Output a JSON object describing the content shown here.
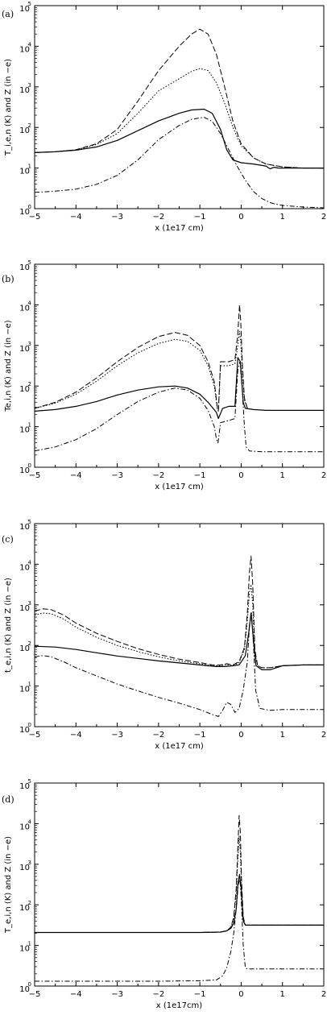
{
  "chart_data": [
    {
      "type": "line",
      "panel_label": "(a)",
      "xlabel": "x (1e17 cm)",
      "ylabel": "T_i,e,n (K) and Z (in −e)",
      "xlim": [
        -5,
        2
      ],
      "ylim": [
        0,
        5
      ],
      "y_scale": "log",
      "x_ticks": [
        "−5",
        "−4",
        "−3",
        "−2",
        "−1",
        "0",
        "1",
        "2"
      ],
      "y_ticks": [
        {
          "base": "10",
          "exp": "0"
        },
        {
          "base": "10",
          "exp": "1"
        },
        {
          "base": "10",
          "exp": "2"
        },
        {
          "base": "10",
          "exp": "3"
        },
        {
          "base": "10",
          "exp": "4"
        },
        {
          "base": "10",
          "exp": "5"
        }
      ],
      "series": [
        {
          "style": "solid",
          "x": [
            -5,
            -4.5,
            -4,
            -3.5,
            -3,
            -2.5,
            -2,
            -1.5,
            -1.2,
            -0.9,
            -0.7,
            -0.5,
            -0.35,
            -0.2,
            0,
            0.3,
            0.6,
            0.7,
            0.8,
            0.9,
            1,
            1.5,
            2
          ],
          "y": [
            1.38,
            1.4,
            1.44,
            1.52,
            1.68,
            1.92,
            2.16,
            2.35,
            2.43,
            2.45,
            2.35,
            1.95,
            1.45,
            1.2,
            1.13,
            1.1,
            1.05,
            0.98,
            1.02,
            1.0,
            1.0,
            1.0,
            1.0
          ]
        },
        {
          "style": "dashed",
          "x": [
            -5,
            -4.5,
            -4,
            -3.5,
            -3,
            -2.5,
            -2,
            -1.5,
            -1.2,
            -1.0,
            -0.8,
            -0.6,
            -0.4,
            -0.2,
            0,
            0.3,
            0.6,
            1,
            1.5,
            2
          ],
          "y": [
            1.38,
            1.4,
            1.45,
            1.6,
            1.95,
            2.65,
            3.4,
            4.0,
            4.3,
            4.42,
            4.3,
            3.8,
            3.0,
            2.15,
            1.6,
            1.25,
            1.1,
            1.03,
            1.0,
            1.0
          ]
        },
        {
          "style": "dotted",
          "x": [
            -5,
            -4.5,
            -4,
            -3.5,
            -3,
            -2.5,
            -2,
            -1.5,
            -1.2,
            -1.0,
            -0.8,
            -0.6,
            -0.4,
            -0.2,
            0,
            0.3,
            0.6,
            1,
            1.5,
            2
          ],
          "y": [
            1.38,
            1.4,
            1.45,
            1.58,
            1.85,
            2.35,
            2.9,
            3.2,
            3.38,
            3.45,
            3.4,
            3.1,
            2.6,
            2.0,
            1.55,
            1.25,
            1.1,
            1.03,
            1.0,
            1.0
          ]
        },
        {
          "style": "dashdot",
          "x": [
            -5,
            -4.5,
            -4,
            -3.5,
            -3,
            -2.5,
            -2,
            -1.5,
            -1.2,
            -0.9,
            -0.7,
            -0.5,
            -0.3,
            -0.1,
            0.1,
            0.3,
            0.5,
            0.7,
            0.8,
            1.0,
            1.5,
            2
          ],
          "y": [
            0.4,
            0.43,
            0.48,
            0.6,
            0.82,
            1.2,
            1.7,
            2.05,
            2.2,
            2.25,
            2.15,
            1.85,
            1.45,
            1.05,
            0.7,
            0.42,
            0.25,
            0.15,
            0.12,
            0.08,
            0.04,
            0.02
          ]
        }
      ]
    },
    {
      "type": "line",
      "panel_label": "(b)",
      "xlabel": "x (1e17 cm)",
      "ylabel": "Te,i,n (K) and Z (in −e)",
      "xlim": [
        -5,
        2
      ],
      "ylim": [
        0,
        5
      ],
      "y_scale": "log",
      "x_ticks": [
        "−5",
        "−4",
        "−3",
        "−2",
        "−1",
        "0",
        "1",
        "2"
      ],
      "y_ticks": [
        {
          "base": "10",
          "exp": "0"
        },
        {
          "base": "10",
          "exp": "1"
        },
        {
          "base": "10",
          "exp": "2"
        },
        {
          "base": "10",
          "exp": "3"
        },
        {
          "base": "10",
          "exp": "4"
        },
        {
          "base": "10",
          "exp": "5"
        }
      ],
      "series": [
        {
          "style": "solid",
          "x": [
            -5,
            -4.5,
            -4,
            -3.5,
            -3,
            -2.5,
            -2,
            -1.6,
            -1.3,
            -1.0,
            -0.8,
            -0.6,
            -0.55,
            -0.45,
            -0.3,
            -0.15,
            -0.08,
            -0.02,
            0.05,
            0.1,
            0.3,
            0.6,
            1,
            1.5,
            2
          ],
          "y": [
            1.38,
            1.42,
            1.5,
            1.62,
            1.78,
            1.9,
            1.98,
            2.0,
            1.95,
            1.8,
            1.6,
            1.35,
            1.2,
            1.45,
            1.5,
            1.5,
            2.7,
            2.6,
            1.6,
            1.45,
            1.42,
            1.4,
            1.4,
            1.4,
            1.4
          ]
        },
        {
          "style": "dashed",
          "x": [
            -5,
            -4.5,
            -4,
            -3.5,
            -3,
            -2.5,
            -2,
            -1.6,
            -1.3,
            -1.0,
            -0.8,
            -0.65,
            -0.58,
            -0.55,
            -0.5,
            -0.3,
            -0.15,
            -0.08,
            -0.04,
            -0.01,
            0.03,
            0.08,
            0.15
          ],
          "y": [
            1.45,
            1.6,
            1.85,
            2.2,
            2.6,
            2.95,
            3.22,
            3.32,
            3.25,
            3.0,
            2.6,
            2.1,
            1.5,
            1.4,
            2.6,
            2.6,
            2.65,
            3.3,
            4.0,
            3.6,
            2.5,
            1.7,
            1.45
          ]
        },
        {
          "style": "dotted",
          "x": [
            -5,
            -4.5,
            -4,
            -3.5,
            -3,
            -2.5,
            -2,
            -1.6,
            -1.3,
            -1.0,
            -0.8,
            -0.65,
            -0.58,
            -0.55,
            -0.5,
            -0.3,
            -0.15,
            -0.08,
            -0.04,
            -0.01,
            0.03,
            0.08,
            0.15
          ],
          "y": [
            1.45,
            1.58,
            1.8,
            2.12,
            2.5,
            2.82,
            3.05,
            3.15,
            3.1,
            2.88,
            2.5,
            2.0,
            1.45,
            1.38,
            2.5,
            2.5,
            2.55,
            3.0,
            3.35,
            3.1,
            2.3,
            1.65,
            1.45
          ]
        },
        {
          "style": "dashdot",
          "x": [
            -5,
            -4.5,
            -4,
            -3.5,
            -3,
            -2.5,
            -2,
            -1.6,
            -1.3,
            -1.0,
            -0.8,
            -0.65,
            -0.6,
            -0.56,
            -0.5,
            -0.3,
            -0.15,
            -0.08,
            -0.03,
            0.02,
            0.08,
            0.12,
            0.2,
            0.5,
            1,
            1.5,
            2
          ],
          "y": [
            0.4,
            0.5,
            0.68,
            0.95,
            1.3,
            1.62,
            1.85,
            1.95,
            1.9,
            1.7,
            1.4,
            1.0,
            0.7,
            0.6,
            1.1,
            1.15,
            1.2,
            2.4,
            2.6,
            2.0,
            1.0,
            0.5,
            0.4,
            0.38,
            0.38,
            0.38,
            0.38
          ]
        }
      ]
    },
    {
      "type": "line",
      "panel_label": "(c)",
      "xlabel": "x (1e17 cm)",
      "ylabel": "t_e,i,n (K) and Z (in −e)",
      "xlim": [
        -5,
        2
      ],
      "ylim": [
        0,
        5
      ],
      "y_scale": "log",
      "x_ticks": [
        "−5",
        "−4",
        "−3",
        "−2",
        "−1",
        "0",
        "1",
        "2"
      ],
      "y_ticks": [
        {
          "base": "10",
          "exp": "0"
        },
        {
          "base": "10",
          "exp": "1"
        },
        {
          "base": "10",
          "exp": "2"
        },
        {
          "base": "10",
          "exp": "3"
        },
        {
          "base": "10",
          "exp": "4"
        },
        {
          "base": "10",
          "exp": "5"
        }
      ],
      "series": [
        {
          "style": "solid",
          "x": [
            -5,
            -4.5,
            -4,
            -3.5,
            -3,
            -2.5,
            -2,
            -1.5,
            -1,
            -0.6,
            -0.4,
            -0.2,
            -0.05,
            0.1,
            0.18,
            0.24,
            0.3,
            0.36,
            0.5,
            0.7,
            1,
            1.5,
            2
          ],
          "y": [
            1.98,
            1.96,
            1.9,
            1.82,
            1.74,
            1.68,
            1.62,
            1.57,
            1.52,
            1.48,
            1.48,
            1.5,
            1.52,
            1.75,
            2.3,
            2.8,
            2.1,
            1.5,
            1.4,
            1.4,
            1.5,
            1.52,
            1.52
          ]
        },
        {
          "style": "dashed",
          "x": [
            -5,
            -4.8,
            -4.6,
            -4.3,
            -4,
            -3.5,
            -3,
            -2.5,
            -2,
            -1.5,
            -1,
            -0.7,
            -0.5,
            -0.35,
            -0.2,
            -0.05,
            0.08,
            0.15,
            0.2,
            0.24,
            0.28,
            0.33,
            0.4,
            0.5,
            0.7,
            1,
            1.5,
            2
          ],
          "y": [
            2.85,
            2.9,
            2.88,
            2.75,
            2.55,
            2.3,
            2.1,
            1.92,
            1.78,
            1.66,
            1.58,
            1.52,
            1.52,
            1.55,
            1.52,
            1.6,
            1.95,
            2.8,
            3.8,
            4.2,
            3.5,
            1.9,
            1.5,
            1.45,
            1.45,
            1.5,
            1.52,
            1.52
          ]
        },
        {
          "style": "dotted",
          "x": [
            -5,
            -4.8,
            -4.6,
            -4.3,
            -4,
            -3.5,
            -3,
            -2.5,
            -2,
            -1.5,
            -1,
            -0.7,
            -0.5,
            -0.35,
            -0.2,
            -0.05,
            0.08,
            0.15,
            0.2,
            0.24,
            0.28,
            0.33,
            0.4,
            0.5,
            0.7,
            1,
            1.5,
            2
          ],
          "y": [
            2.75,
            2.8,
            2.78,
            2.65,
            2.45,
            2.2,
            2.0,
            1.85,
            1.72,
            1.62,
            1.55,
            1.5,
            1.5,
            1.53,
            1.5,
            1.58,
            1.9,
            2.6,
            3.3,
            3.5,
            3.0,
            1.8,
            1.5,
            1.45,
            1.45,
            1.5,
            1.52,
            1.52
          ]
        },
        {
          "style": "dashdot",
          "x": [
            -5,
            -4.8,
            -4.6,
            -4.3,
            -4,
            -3.5,
            -3,
            -2.5,
            -2,
            -1.5,
            -1,
            -0.7,
            -0.55,
            -0.45,
            -0.35,
            -0.25,
            -0.15,
            -0.05,
            0.05,
            0.15,
            0.2,
            0.25,
            0.3,
            0.35,
            0.45,
            0.7,
            1,
            1.5,
            2
          ],
          "y": [
            1.72,
            1.75,
            1.72,
            1.6,
            1.45,
            1.25,
            1.05,
            0.88,
            0.72,
            0.58,
            0.42,
            0.3,
            0.25,
            0.4,
            0.6,
            0.55,
            0.35,
            0.45,
            0.9,
            1.6,
            2.5,
            2.8,
            2.0,
            0.9,
            0.45,
            0.4,
            0.42,
            0.42,
            0.42
          ]
        }
      ]
    },
    {
      "type": "line",
      "panel_label": "(d)",
      "xlabel": "x (1e17cm)",
      "ylabel": "T_e,i,n (K) and Z (in −e)",
      "xlim": [
        -5,
        2
      ],
      "ylim": [
        0,
        5
      ],
      "y_scale": "log",
      "x_ticks": [
        "−5",
        "−4",
        "−3",
        "−2",
        "−1",
        "0",
        "1",
        "2"
      ],
      "y_ticks": [
        {
          "base": "10",
          "exp": "0"
        },
        {
          "base": "10",
          "exp": "1"
        },
        {
          "base": "10",
          "exp": "2"
        },
        {
          "base": "10",
          "exp": "3"
        },
        {
          "base": "10",
          "exp": "4"
        },
        {
          "base": "10",
          "exp": "5"
        }
      ],
      "series": [
        {
          "style": "solid",
          "x": [
            -5,
            -4,
            -3,
            -2,
            -1,
            -0.5,
            -0.35,
            -0.25,
            -0.18,
            -0.12,
            -0.08,
            -0.04,
            0.0,
            0.05,
            0.1,
            0.5,
            1,
            1.5,
            2
          ],
          "y": [
            1.32,
            1.32,
            1.32,
            1.32,
            1.32,
            1.33,
            1.36,
            1.42,
            1.55,
            1.9,
            2.5,
            2.75,
            2.4,
            1.6,
            1.5,
            1.5,
            1.5,
            1.5,
            1.5
          ]
        },
        {
          "style": "dashed",
          "x": [
            -5,
            -4,
            -3,
            -2,
            -1,
            -0.5,
            -0.35,
            -0.25,
            -0.18,
            -0.12,
            -0.08,
            -0.05,
            -0.02,
            0.01,
            0.05,
            0.1,
            0.5,
            1,
            1.5,
            2
          ],
          "y": [
            1.32,
            1.32,
            1.32,
            1.32,
            1.32,
            1.33,
            1.36,
            1.45,
            1.7,
            2.4,
            3.4,
            4.2,
            3.8,
            2.6,
            1.7,
            1.5,
            1.5,
            1.5,
            1.5,
            1.5
          ]
        },
        {
          "style": "dotted",
          "x": [
            -5,
            -4,
            -3,
            -2,
            -1,
            -0.5,
            -0.35,
            -0.25,
            -0.18,
            -0.12,
            -0.08,
            -0.05,
            -0.02,
            0.01,
            0.05,
            0.1,
            0.5,
            1,
            1.5,
            2
          ],
          "y": [
            1.32,
            1.32,
            1.32,
            1.32,
            1.32,
            1.33,
            1.36,
            1.44,
            1.65,
            2.3,
            3.1,
            3.7,
            3.3,
            2.4,
            1.65,
            1.5,
            1.5,
            1.5,
            1.5,
            1.5
          ]
        },
        {
          "style": "dashdot",
          "x": [
            -5,
            -4,
            -3,
            -2,
            -1,
            -0.6,
            -0.45,
            -0.35,
            -0.25,
            -0.18,
            -0.12,
            -0.07,
            -0.03,
            0.0,
            0.05,
            0.1,
            0.15,
            0.5,
            1,
            1.5,
            2
          ],
          "y": [
            0.12,
            0.12,
            0.12,
            0.12,
            0.13,
            0.15,
            0.25,
            0.45,
            0.85,
            1.3,
            1.9,
            2.5,
            2.65,
            2.2,
            1.0,
            0.45,
            0.42,
            0.42,
            0.42,
            0.42,
            0.42
          ]
        }
      ]
    }
  ]
}
